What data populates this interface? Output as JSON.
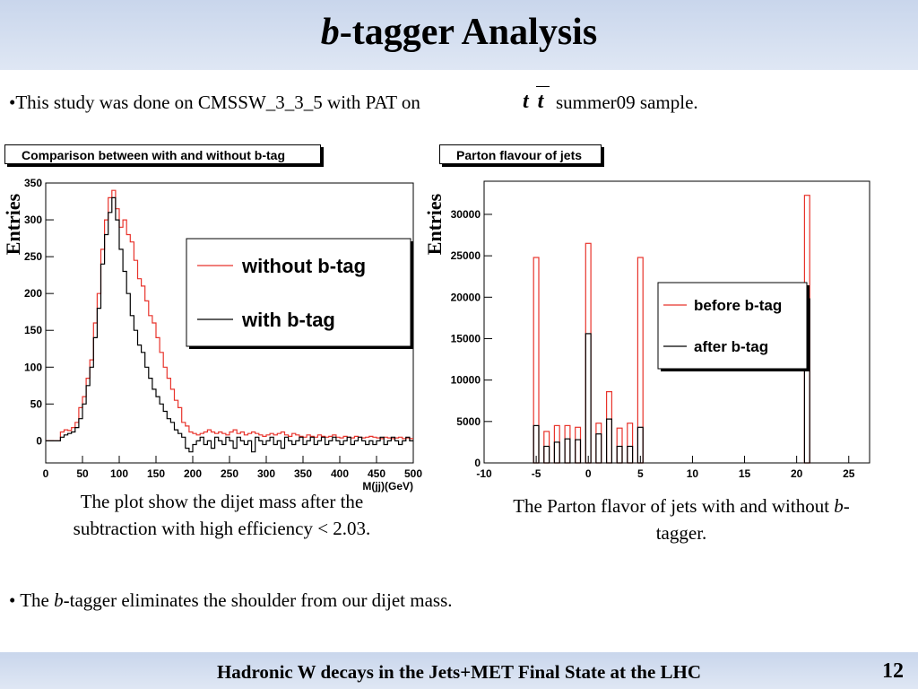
{
  "slide": {
    "title_italic": "b",
    "title_rest": "-tagger Analysis",
    "bullet1_pre": "•This study was done on CMSSW_3_3_5 with PAT on",
    "bullet1_tt": "t t",
    "bullet1_post": "summer09 sample.",
    "caption_left": "The plot show the dijet mass after the subtraction with high efficiency < 2.03.",
    "caption_right_pre": "The Parton flavor of jets with and without ",
    "caption_right_italic": "b",
    "caption_right_post": "-tagger.",
    "bullet2_pre": "• The ",
    "bullet2_italic": "b",
    "bullet2_post": "-tagger eliminates the shoulder from our dijet mass.",
    "footer": "Hadronic W decays in the Jets+MET Final State at the LHC",
    "page_number": "12"
  },
  "colors": {
    "red": "#e8332b",
    "black": "#000000"
  },
  "chart_data": [
    {
      "type": "line",
      "title": "Comparison between with and without b-tag",
      "xlabel": "M(jj)(GeV)",
      "ylabel": "Entries",
      "xlim": [
        0,
        500
      ],
      "ylim": [
        -30,
        350
      ],
      "xticks": [
        0,
        50,
        100,
        150,
        200,
        250,
        300,
        350,
        400,
        450,
        500
      ],
      "yticks": [
        0,
        50,
        100,
        150,
        200,
        250,
        300,
        350
      ],
      "legend": "top-right",
      "x": [
        0,
        5,
        10,
        15,
        20,
        25,
        30,
        35,
        40,
        45,
        50,
        55,
        60,
        65,
        70,
        75,
        80,
        85,
        90,
        95,
        100,
        105,
        110,
        115,
        120,
        125,
        130,
        135,
        140,
        145,
        150,
        155,
        160,
        165,
        170,
        175,
        180,
        185,
        190,
        195,
        200,
        205,
        210,
        215,
        220,
        225,
        230,
        235,
        240,
        245,
        250,
        255,
        260,
        265,
        270,
        275,
        280,
        285,
        290,
        295,
        300,
        305,
        310,
        315,
        320,
        325,
        330,
        335,
        340,
        345,
        350,
        355,
        360,
        365,
        370,
        375,
        380,
        385,
        390,
        395,
        400,
        405,
        410,
        415,
        420,
        425,
        430,
        435,
        440,
        445,
        450,
        455,
        460,
        465,
        470,
        475,
        480,
        485,
        490,
        495
      ],
      "series": [
        {
          "name": "without b-tag",
          "color": "red",
          "values": [
            0,
            0,
            0,
            0,
            12,
            15,
            14,
            18,
            25,
            45,
            60,
            85,
            110,
            160,
            200,
            260,
            300,
            330,
            340,
            315,
            290,
            300,
            280,
            270,
            245,
            220,
            210,
            190,
            170,
            160,
            140,
            120,
            100,
            85,
            70,
            55,
            45,
            25,
            20,
            12,
            10,
            8,
            10,
            12,
            15,
            12,
            10,
            12,
            10,
            8,
            12,
            15,
            10,
            12,
            8,
            10,
            12,
            10,
            8,
            6,
            8,
            10,
            8,
            10,
            12,
            8,
            6,
            10,
            8,
            6,
            5,
            8,
            6,
            5,
            8,
            6,
            5,
            6,
            8,
            5,
            4,
            6,
            5,
            4,
            6,
            5,
            4,
            5,
            6,
            5,
            4,
            3,
            5,
            4,
            3,
            4,
            5,
            3,
            4,
            3
          ]
        },
        {
          "name": "with b-tag",
          "color": "black",
          "values": [
            0,
            0,
            0,
            0,
            5,
            8,
            10,
            12,
            18,
            30,
            50,
            75,
            100,
            140,
            180,
            240,
            280,
            310,
            330,
            300,
            260,
            230,
            200,
            170,
            150,
            130,
            120,
            100,
            85,
            70,
            60,
            50,
            40,
            30,
            25,
            15,
            10,
            5,
            -10,
            -15,
            -5,
            0,
            5,
            -5,
            0,
            -10,
            5,
            0,
            -5,
            5,
            0,
            -10,
            5,
            0,
            -5,
            0,
            -15,
            5,
            0,
            -5,
            0,
            5,
            -5,
            0,
            -10,
            5,
            0,
            -5,
            0,
            5,
            -5,
            0,
            5,
            -5,
            0,
            5,
            -5,
            0,
            5,
            0,
            -5,
            0,
            5,
            -5,
            0,
            5,
            0,
            -5,
            0,
            -5,
            0,
            5,
            -5,
            0,
            5,
            0,
            -5,
            0,
            5,
            0
          ]
        }
      ]
    },
    {
      "type": "bar",
      "title": "Parton flavour of jets",
      "xlabel": "",
      "ylabel": "Entries",
      "xlim": [
        -10,
        27
      ],
      "ylim": [
        0,
        34000
      ],
      "xticks": [
        -10,
        -5,
        0,
        5,
        10,
        15,
        20,
        25
      ],
      "yticks": [
        0,
        5000,
        10000,
        15000,
        20000,
        25000,
        30000
      ],
      "legend": "center-right",
      "categories": [
        -5,
        -4,
        -3,
        -2,
        -1,
        0,
        1,
        2,
        3,
        4,
        5,
        21
      ],
      "series": [
        {
          "name": "before b-tag",
          "color": "red",
          "values": [
            24800,
            3800,
            4500,
            4500,
            4300,
            26500,
            4800,
            8600,
            4200,
            4800,
            24800,
            32300
          ]
        },
        {
          "name": "after b-tag",
          "color": "black",
          "values": [
            4500,
            2000,
            2500,
            2900,
            2800,
            15600,
            3500,
            5300,
            2000,
            2000,
            4300,
            19800
          ]
        }
      ]
    }
  ]
}
